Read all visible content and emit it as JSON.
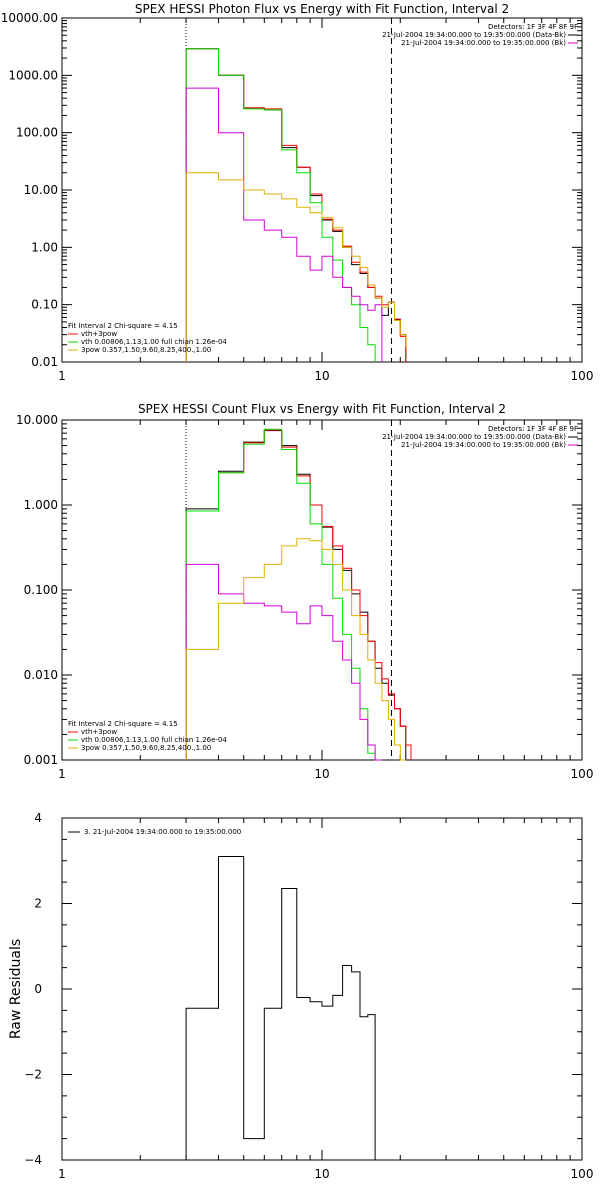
{
  "chart_data": [
    {
      "type": "line",
      "title": "SPEX HESSI Photon Flux vs Energy with Fit Function, Interval 2",
      "xscale": "log",
      "yscale": "log",
      "xlim": [
        1,
        100
      ],
      "ylim": [
        0.01,
        10000
      ],
      "x_ticks": [
        {
          "v": 1,
          "label": "1"
        },
        {
          "v": 10,
          "label": "10"
        },
        {
          "v": 100,
          "label": "100"
        }
      ],
      "y_ticks": [
        {
          "v": 0.01,
          "label": "0.01"
        },
        {
          "v": 0.1,
          "label": "0.10"
        },
        {
          "v": 1,
          "label": "1.00"
        },
        {
          "v": 10,
          "label": "10.00"
        },
        {
          "v": 100,
          "label": "100.00"
        },
        {
          "v": 1000,
          "label": "1000.00"
        },
        {
          "v": 10000,
          "label": "10000.00"
        }
      ],
      "vlines": [
        {
          "x": 3,
          "style": "dotted",
          "color": "#000000"
        },
        {
          "x": 18.5,
          "style": "dashed",
          "color": "#000000"
        }
      ],
      "legend_top": [
        {
          "text": "Detectors: 1F 3F 4F 8F 9F",
          "color": null
        },
        {
          "text": "21-Jul-2004 19:34:00.000 to 19:35:00.000 (Data-Bk)",
          "color": "#000000"
        },
        {
          "text": "21-Jul-2004 19:34:00.000 to 19:35:00.000 (Bk)",
          "color": "#d400d4"
        }
      ],
      "legend_bottom": [
        {
          "text": "Fit Interval 2   Chi-square = 4.15",
          "color": null
        },
        {
          "text": "vth+3pow",
          "color": "#ff0000"
        },
        {
          "text": "vth 0.00806,1.13,1.00  full chian 1.26e-04",
          "color": "#00dd00"
        },
        {
          "text": "3pow 0.357,1.50,9.60,8.25,400.,1.00",
          "color": "#e0b000"
        }
      ],
      "edges": [
        3,
        4,
        5,
        6,
        7,
        8,
        9,
        10,
        11,
        12,
        13,
        14,
        15,
        16,
        17,
        18,
        19,
        20,
        21
      ],
      "series": [
        {
          "color": "#000000",
          "values": [
            2900,
            1000,
            270,
            250,
            55,
            25,
            8,
            3,
            1.9,
            1.0,
            0.5,
            0.35,
            0.2,
            0.13,
            0.065,
            0.11,
            0.055,
            0.03
          ]
        },
        {
          "color": "#ff0000",
          "values": [
            2900,
            1000,
            270,
            260,
            60,
            25,
            8.5,
            3.1,
            2.0,
            1.05,
            0.55,
            0.37,
            0.2,
            0.14,
            0.1,
            0.11,
            0.056,
            0.028
          ]
        },
        {
          "color": "#00dd00",
          "values": [
            2900,
            1000,
            260,
            250,
            50,
            20,
            6,
            1.5,
            0.6,
            0.2,
            0.1,
            0.04,
            0.02
          ]
        },
        {
          "color": "#d400d4",
          "values": [
            600,
            100,
            3,
            2,
            1.5,
            0.7,
            0.4,
            0.7,
            0.3,
            0.2,
            0.14,
            0.1,
            0.08,
            0.1
          ]
        },
        {
          "color": "#e0b000",
          "values": [
            20,
            15,
            10,
            8.5,
            7,
            5,
            4,
            3.3,
            2.2,
            1.0,
            0.7,
            0.45,
            0.22,
            0.13,
            0.09,
            0.11,
            0.053,
            0.03,
            0.018,
            0.012
          ]
        }
      ]
    },
    {
      "type": "line",
      "title": "SPEX HESSI Count Flux vs Energy with Fit Function, Interval 2",
      "xscale": "log",
      "yscale": "log",
      "xlim": [
        1,
        100
      ],
      "ylim": [
        0.001,
        10
      ],
      "x_ticks": [
        {
          "v": 1,
          "label": "1"
        },
        {
          "v": 10,
          "label": "10"
        },
        {
          "v": 100,
          "label": "100"
        }
      ],
      "y_ticks": [
        {
          "v": 0.001,
          "label": "0.001"
        },
        {
          "v": 0.01,
          "label": "0.010"
        },
        {
          "v": 0.1,
          "label": "0.100"
        },
        {
          "v": 1,
          "label": "1.000"
        },
        {
          "v": 10,
          "label": "10.000"
        }
      ],
      "vlines": [
        {
          "x": 3,
          "style": "dotted",
          "color": "#000000"
        },
        {
          "x": 18.5,
          "style": "dashed",
          "color": "#000000"
        }
      ],
      "legend_top": [
        {
          "text": "Detectors: 1F 3F 4F 8F 9F",
          "color": null
        },
        {
          "text": "21-Jul-2004 19:34:00.000 to 19:35:00.000 (Data-Bk)",
          "color": "#000000"
        },
        {
          "text": "21-Jul-2004 19:34:00.000 to 19:35:00.000 (Bk)",
          "color": "#d400d4"
        }
      ],
      "legend_bottom": [
        {
          "text": "Fit Interval 2   Chi-square = 4.15",
          "color": null
        },
        {
          "text": "vth+3pow",
          "color": "#ff0000"
        },
        {
          "text": "vth 0.00806,1.13,1.00  full chian 1.26e-04",
          "color": "#00dd00"
        },
        {
          "text": "3pow 0.357,1.50,9.60,8.25,400.,1.00",
          "color": "#e0b000"
        }
      ],
      "edges": [
        3,
        4,
        5,
        6,
        7,
        8,
        9,
        10,
        11,
        12,
        13,
        14,
        15,
        16,
        17,
        18,
        19,
        20,
        21,
        22
      ],
      "series": [
        {
          "color": "#000000",
          "values": [
            0.9,
            2.5,
            5.5,
            7.5,
            5.0,
            2.3,
            1.0,
            0.55,
            0.3,
            0.17,
            0.09,
            0.055,
            0.025,
            0.012,
            0.008,
            0.0058,
            0.004,
            0.0025
          ]
        },
        {
          "color": "#ff0000",
          "values": [
            0.85,
            2.4,
            5.4,
            7.6,
            4.8,
            2.2,
            1.0,
            0.56,
            0.33,
            0.18,
            0.1,
            0.05,
            0.025,
            0.014,
            0.009,
            0.006,
            0.004,
            0.0025,
            0.0015
          ]
        },
        {
          "color": "#00dd00",
          "values": [
            0.85,
            2.4,
            5.2,
            7.8,
            4.5,
            1.8,
            0.6,
            0.2,
            0.08,
            0.03,
            0.012,
            0.004,
            0.0012
          ]
        },
        {
          "color": "#d400d4",
          "values": [
            0.2,
            0.09,
            0.07,
            0.065,
            0.055,
            0.04,
            0.065,
            0.05,
            0.025,
            0.015,
            0.008,
            0.003,
            0.0015,
            0.001
          ]
        },
        {
          "color": "#e0b000",
          "values": [
            0.02,
            0.07,
            0.14,
            0.2,
            0.33,
            0.4,
            0.38,
            0.3,
            0.2,
            0.1,
            0.05,
            0.03,
            0.015,
            0.008,
            0.005,
            0.003,
            0.0015,
            0.001
          ]
        }
      ]
    },
    {
      "type": "line",
      "title": "",
      "ylabel": "Raw Residuals",
      "xscale": "log",
      "yscale": "linear",
      "xlim": [
        1,
        100
      ],
      "ylim": [
        -4,
        4
      ],
      "x_ticks": [
        {
          "v": 1,
          "label": "1"
        },
        {
          "v": 10,
          "label": "10"
        },
        {
          "v": 100,
          "label": "100"
        }
      ],
      "y_ticks": [
        {
          "v": -4,
          "label": "−4"
        },
        {
          "v": -2,
          "label": "−2"
        },
        {
          "v": 0,
          "label": "0"
        },
        {
          "v": 2,
          "label": "2"
        },
        {
          "v": 4,
          "label": "4"
        }
      ],
      "vlines": [],
      "legend_top": [
        {
          "text": "3. 21-Jul-2004 19:34:00.000 to 19:35:00.000",
          "color": "#000000"
        }
      ],
      "legend_bottom": [],
      "edges": [
        3,
        4,
        5,
        6,
        7,
        8,
        9,
        10,
        11,
        12,
        13,
        14,
        15,
        16,
        17,
        18
      ],
      "series": [
        {
          "color": "#000000",
          "values": [
            -0.45,
            3.1,
            -3.5,
            -0.45,
            2.35,
            -0.2,
            -0.3,
            -0.4,
            -0.15,
            0.55,
            0.4,
            -0.65,
            -0.6
          ],
          "drop_to_floor": true
        }
      ]
    }
  ]
}
